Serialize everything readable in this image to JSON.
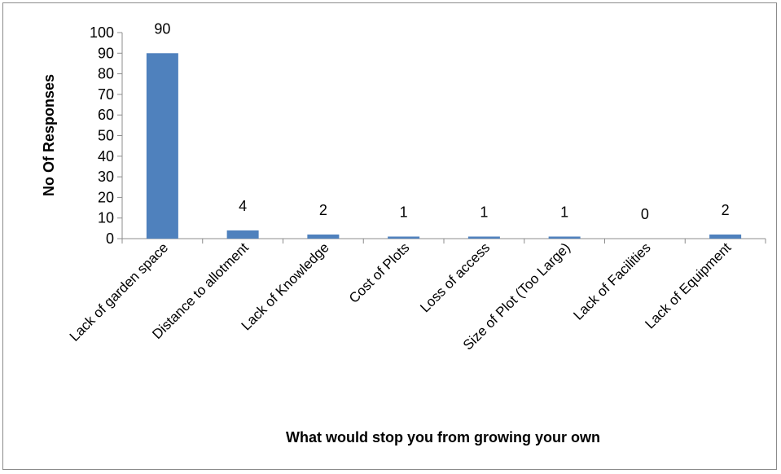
{
  "chart_data": {
    "type": "bar",
    "categories": [
      "Lack of garden space",
      "Distance to allotment",
      "Lack of Knowledge",
      "Cost of Plots",
      "Loss of access",
      "Size of Plot  (Too Large)",
      "Lack of Facilities",
      "Lack of Equipment"
    ],
    "values": [
      90,
      4,
      2,
      1,
      1,
      1,
      0,
      2
    ],
    "data_labels": [
      "90",
      "4",
      "2",
      "1",
      "1",
      "1",
      "0",
      "2"
    ],
    "xlabel": "What would stop you from growing your own",
    "ylabel": "No Of Responses",
    "ylim": [
      0,
      100
    ],
    "yticks": [
      0,
      10,
      20,
      30,
      40,
      50,
      60,
      70,
      80,
      90,
      100
    ],
    "bar_color": "#4f81bd",
    "grid": false,
    "legend": "none"
  }
}
